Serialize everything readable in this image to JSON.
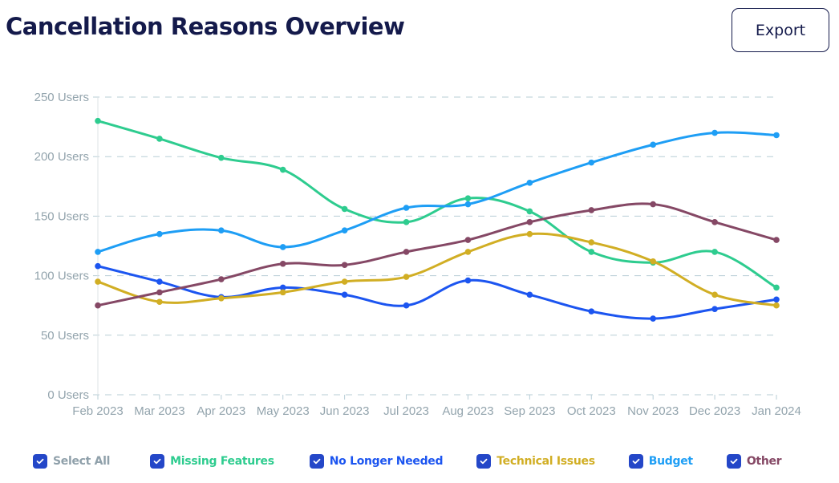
{
  "header": {
    "title": "Cancellation Reasons Overview",
    "export_label": "Export"
  },
  "legend": {
    "select_all": {
      "label": "Select All",
      "checked": true,
      "color": "#8fa0aa"
    }
  },
  "chart_data": {
    "type": "line",
    "title": "Cancellation Reasons Overview",
    "xlabel": "",
    "ylabel": "",
    "x": [
      "Feb 2023",
      "Mar 2023",
      "Apr 2023",
      "May 2023",
      "Jun 2023",
      "Jul 2023",
      "Aug 2023",
      "Sep 2023",
      "Oct 2023",
      "Nov 2023",
      "Dec 2023",
      "Jan 2024"
    ],
    "ylim": [
      0,
      250
    ],
    "yticks": [
      0,
      50,
      100,
      150,
      200,
      250
    ],
    "ytick_labels": [
      "0 Users",
      "50 Users",
      "100 Users",
      "150 Users",
      "200 Users",
      "250 Users"
    ],
    "grid": "horizontal-dashed",
    "legend_position": "bottom",
    "smooth": true,
    "series": [
      {
        "name": "Missing Features",
        "color": "#2ecc8f",
        "checked": true,
        "values": [
          230,
          215,
          199,
          189,
          156,
          145,
          165,
          154,
          120,
          111,
          120,
          90
        ]
      },
      {
        "name": "No Longer Needed",
        "color": "#1c55f0",
        "checked": true,
        "values": [
          108,
          95,
          82,
          90,
          84,
          75,
          96,
          84,
          70,
          64,
          72,
          80
        ]
      },
      {
        "name": "Technical Issues",
        "color": "#d1ae24",
        "checked": true,
        "values": [
          95,
          78,
          81,
          86,
          95,
          99,
          120,
          135,
          128,
          112,
          84,
          75
        ]
      },
      {
        "name": "Budget",
        "color": "#1e9ef5",
        "checked": true,
        "values": [
          120,
          135,
          138,
          124,
          138,
          157,
          160,
          178,
          195,
          210,
          220,
          218
        ]
      },
      {
        "name": "Other",
        "color": "#854865",
        "checked": true,
        "values": [
          75,
          86,
          97,
          110,
          109,
          120,
          130,
          145,
          155,
          160,
          145,
          130
        ]
      }
    ]
  }
}
